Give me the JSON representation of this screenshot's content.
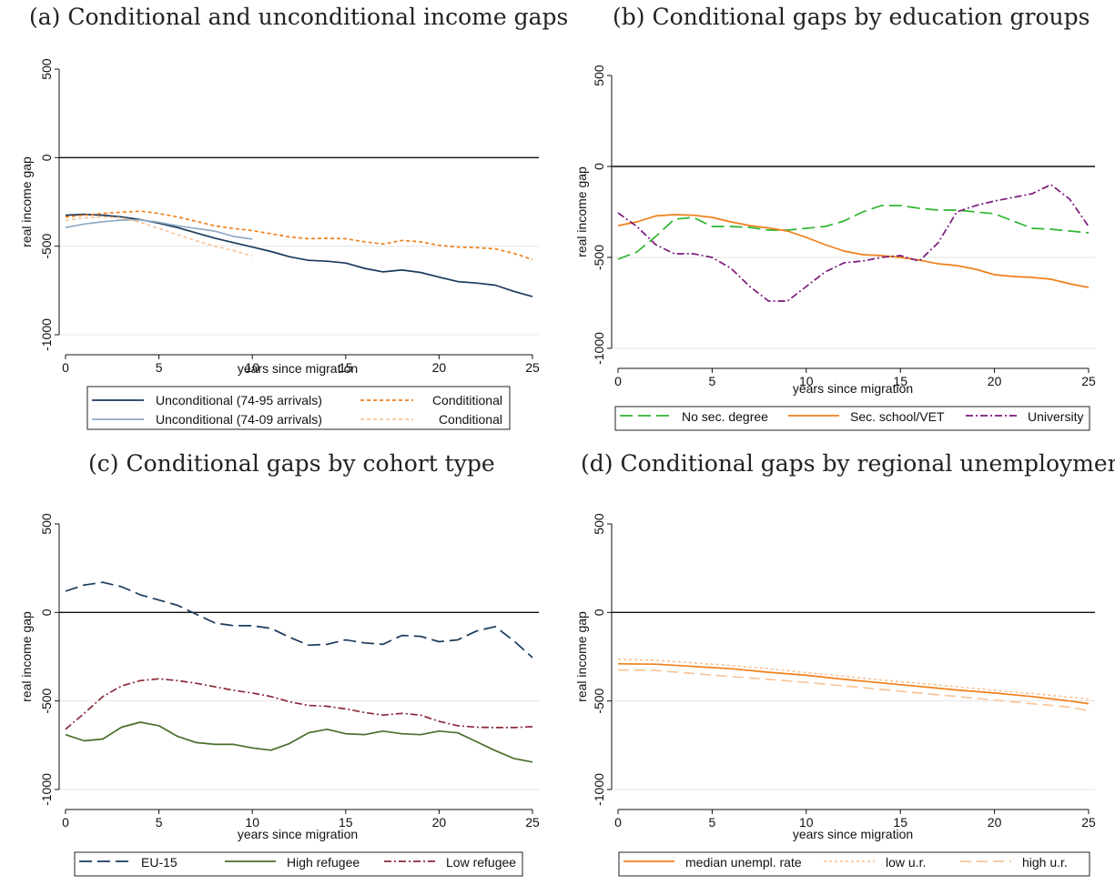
{
  "chart_data": [
    {
      "panel": "a",
      "title": "(a) Conditional and unconditional income gaps",
      "type": "line",
      "xlabel": "years since migration",
      "ylabel": "real income gap",
      "xlim": [
        0,
        25
      ],
      "ylim": [
        -1000,
        500
      ],
      "xticks": [
        "0",
        "5",
        "10",
        "15",
        "20",
        "25"
      ],
      "yticks": [
        "500",
        "0",
        "-500",
        "-1000"
      ],
      "reference_line": 0,
      "gridlines": [
        -500,
        -1000
      ],
      "legend_position": "bottom",
      "series": [
        {
          "name": "Unconditional (74-95 arrivals)",
          "color": "#1b3a5c",
          "dash": "solid",
          "x": [
            0,
            1,
            2,
            3,
            4,
            5,
            6,
            7,
            8,
            9,
            10,
            11,
            12,
            13,
            14,
            15,
            16,
            17,
            18,
            19,
            20,
            21,
            22,
            23,
            24,
            25
          ],
          "y": [
            -325,
            -320,
            -325,
            -335,
            -350,
            -370,
            -395,
            -425,
            -455,
            -480,
            -505,
            -530,
            -560,
            -580,
            -585,
            -595,
            -625,
            -645,
            -635,
            -648,
            -675,
            -700,
            -708,
            -720,
            -755,
            -785
          ]
        },
        {
          "name": "Unconditional (74-09 arrivals)",
          "color": "#8fa9c4",
          "dash": "solid",
          "x": [
            0,
            1,
            2,
            3,
            4,
            5,
            6,
            7,
            8,
            9,
            10
          ],
          "y": [
            -395,
            -375,
            -362,
            -352,
            -352,
            -365,
            -385,
            -400,
            -415,
            -445,
            -460
          ]
        },
        {
          "name": "Condititional",
          "color": "#f07f1a",
          "dash": "4,3",
          "x": [
            0,
            1,
            2,
            3,
            4,
            5,
            6,
            7,
            8,
            9,
            10,
            11,
            12,
            13,
            14,
            15,
            16,
            17,
            18,
            19,
            20,
            21,
            22,
            23,
            24,
            25
          ],
          "y": [
            -335,
            -325,
            -315,
            -308,
            -302,
            -315,
            -335,
            -360,
            -385,
            -400,
            -412,
            -430,
            -448,
            -458,
            -455,
            -458,
            -475,
            -488,
            -468,
            -475,
            -495,
            -505,
            -508,
            -515,
            -540,
            -575
          ]
        },
        {
          "name": "Conditional",
          "color": "#f8c59b",
          "dash": "4,3",
          "x": [
            0,
            1,
            2,
            3,
            4,
            5,
            6,
            7,
            8,
            9,
            10
          ],
          "y": [
            -355,
            -340,
            -335,
            -340,
            -365,
            -400,
            -435,
            -470,
            -500,
            -525,
            -555
          ]
        }
      ]
    },
    {
      "panel": "b",
      "title": "(b) Conditional gaps by education groups",
      "type": "line",
      "xlabel": "years since migration",
      "ylabel": "real income gap",
      "xlim": [
        0,
        25
      ],
      "ylim": [
        -1000,
        500
      ],
      "xticks": [
        "0",
        "5",
        "10",
        "15",
        "20",
        "25"
      ],
      "yticks": [
        "500",
        "0",
        "-500",
        "-1000"
      ],
      "reference_line": 0,
      "gridlines": [
        -500,
        -1000
      ],
      "legend_position": "bottom",
      "series": [
        {
          "name": "No sec. degree",
          "color": "#2fb52f",
          "dash": "14,6",
          "x": [
            0,
            1,
            2,
            3,
            4,
            5,
            6,
            7,
            8,
            9,
            10,
            11,
            12,
            13,
            14,
            15,
            16,
            17,
            18,
            19,
            20,
            21,
            22,
            23,
            24,
            25
          ],
          "y": [
            -510,
            -470,
            -385,
            -290,
            -280,
            -330,
            -330,
            -335,
            -350,
            -350,
            -340,
            -330,
            -300,
            -250,
            -215,
            -215,
            -230,
            -240,
            -240,
            -250,
            -260,
            -300,
            -340,
            -345,
            -355,
            -365
          ]
        },
        {
          "name": "Sec. school/VET",
          "color": "#f07f1a",
          "dash": "solid",
          "x": [
            0,
            1,
            2,
            3,
            4,
            5,
            6,
            7,
            8,
            9,
            10,
            11,
            12,
            13,
            14,
            15,
            16,
            17,
            18,
            19,
            20,
            21,
            22,
            23,
            24,
            25
          ],
          "y": [
            -325,
            -305,
            -272,
            -265,
            -268,
            -280,
            -305,
            -325,
            -338,
            -355,
            -390,
            -430,
            -465,
            -485,
            -490,
            -500,
            -515,
            -535,
            -545,
            -565,
            -595,
            -605,
            -610,
            -620,
            -645,
            -665
          ]
        },
        {
          "name": "University",
          "color": "#7a1a7a",
          "dash": "8,3,2,3",
          "x": [
            0,
            1,
            2,
            3,
            4,
            5,
            6,
            7,
            8,
            9,
            10,
            11,
            12,
            13,
            14,
            15,
            16,
            17,
            18,
            19,
            20,
            21,
            22,
            23,
            24,
            25
          ],
          "y": [
            -255,
            -330,
            -430,
            -480,
            -480,
            -500,
            -560,
            -660,
            -740,
            -740,
            -660,
            -580,
            -530,
            -520,
            -500,
            -490,
            -520,
            -420,
            -250,
            -215,
            -190,
            -170,
            -150,
            -100,
            -180,
            -330
          ]
        }
      ]
    },
    {
      "panel": "c",
      "title": "(c) Conditional gaps by cohort type",
      "type": "line",
      "xlabel": "years since migration",
      "ylabel": "real income gap",
      "xlim": [
        0,
        25
      ],
      "ylim": [
        -1000,
        500
      ],
      "xticks": [
        "0",
        "5",
        "10",
        "15",
        "20",
        "25"
      ],
      "yticks": [
        "500",
        "0",
        "-500",
        "-1000"
      ],
      "reference_line": 0,
      "gridlines": [
        -500,
        -1000
      ],
      "legend_position": "bottom",
      "series": [
        {
          "name": "EU-15",
          "color": "#1b3a5c",
          "dash": "14,6",
          "x": [
            0,
            1,
            2,
            3,
            4,
            5,
            6,
            7,
            8,
            9,
            10,
            11,
            12,
            13,
            14,
            15,
            16,
            17,
            18,
            19,
            20,
            21,
            22,
            23,
            24,
            25
          ],
          "y": [
            120,
            155,
            170,
            145,
            100,
            70,
            40,
            -10,
            -60,
            -75,
            -75,
            -90,
            -140,
            -185,
            -180,
            -155,
            -172,
            -180,
            -130,
            -135,
            -165,
            -155,
            -105,
            -80,
            -160,
            -255
          ]
        },
        {
          "name": "High refugee",
          "color": "#4a6e2a",
          "dash": "solid",
          "x": [
            0,
            1,
            2,
            3,
            4,
            5,
            6,
            7,
            8,
            9,
            10,
            11,
            12,
            13,
            14,
            15,
            16,
            17,
            18,
            19,
            20,
            21,
            22,
            23,
            24,
            25
          ],
          "y": [
            -690,
            -725,
            -715,
            -648,
            -620,
            -640,
            -700,
            -735,
            -745,
            -745,
            -765,
            -778,
            -740,
            -680,
            -660,
            -685,
            -690,
            -670,
            -685,
            -690,
            -670,
            -680,
            -730,
            -780,
            -825,
            -845
          ]
        },
        {
          "name": "Low refugee",
          "color": "#8a2a3a",
          "dash": "8,3,2,3",
          "x": [
            0,
            1,
            2,
            3,
            4,
            5,
            6,
            7,
            8,
            9,
            10,
            11,
            12,
            13,
            14,
            15,
            16,
            17,
            18,
            19,
            20,
            21,
            22,
            23,
            24,
            25
          ],
          "y": [
            -660,
            -570,
            -475,
            -415,
            -385,
            -375,
            -385,
            -400,
            -420,
            -440,
            -455,
            -475,
            -505,
            -525,
            -530,
            -545,
            -565,
            -580,
            -570,
            -580,
            -615,
            -640,
            -648,
            -650,
            -650,
            -645
          ]
        }
      ]
    },
    {
      "panel": "d",
      "title": "(d) Conditional gaps by regional unemployment",
      "type": "line",
      "xlabel": "years since migration",
      "ylabel": "real income gap",
      "xlim": [
        0,
        25
      ],
      "ylim": [
        -1000,
        500
      ],
      "xticks": [
        "0",
        "5",
        "10",
        "15",
        "20",
        "25"
      ],
      "yticks": [
        "500",
        "0",
        "-500",
        "-1000"
      ],
      "reference_line": 0,
      "gridlines": [
        -500,
        -1000
      ],
      "legend_position": "bottom",
      "series": [
        {
          "name": "median unempl. rate",
          "color": "#f07f1a",
          "dash": "solid",
          "x": [
            0,
            2,
            4,
            6,
            8,
            10,
            12,
            14,
            16,
            18,
            20,
            22,
            24,
            25
          ],
          "y": [
            -290,
            -292,
            -305,
            -318,
            -338,
            -355,
            -378,
            -398,
            -418,
            -438,
            -455,
            -475,
            -500,
            -515
          ]
        },
        {
          "name": "low u.r.",
          "color": "#f8c59b",
          "dash": "3,3",
          "x": [
            0,
            2,
            4,
            6,
            8,
            10,
            12,
            14,
            16,
            18,
            20,
            22,
            24,
            25
          ],
          "y": [
            -265,
            -270,
            -285,
            -300,
            -318,
            -340,
            -360,
            -382,
            -400,
            -420,
            -440,
            -458,
            -478,
            -490
          ]
        },
        {
          "name": "high u.r.",
          "color": "#f8c59b",
          "dash": "12,6",
          "x": [
            0,
            2,
            4,
            6,
            8,
            10,
            12,
            14,
            16,
            18,
            20,
            22,
            24,
            25
          ],
          "y": [
            -325,
            -328,
            -345,
            -362,
            -378,
            -395,
            -415,
            -435,
            -455,
            -475,
            -495,
            -515,
            -535,
            -555
          ]
        }
      ]
    }
  ]
}
